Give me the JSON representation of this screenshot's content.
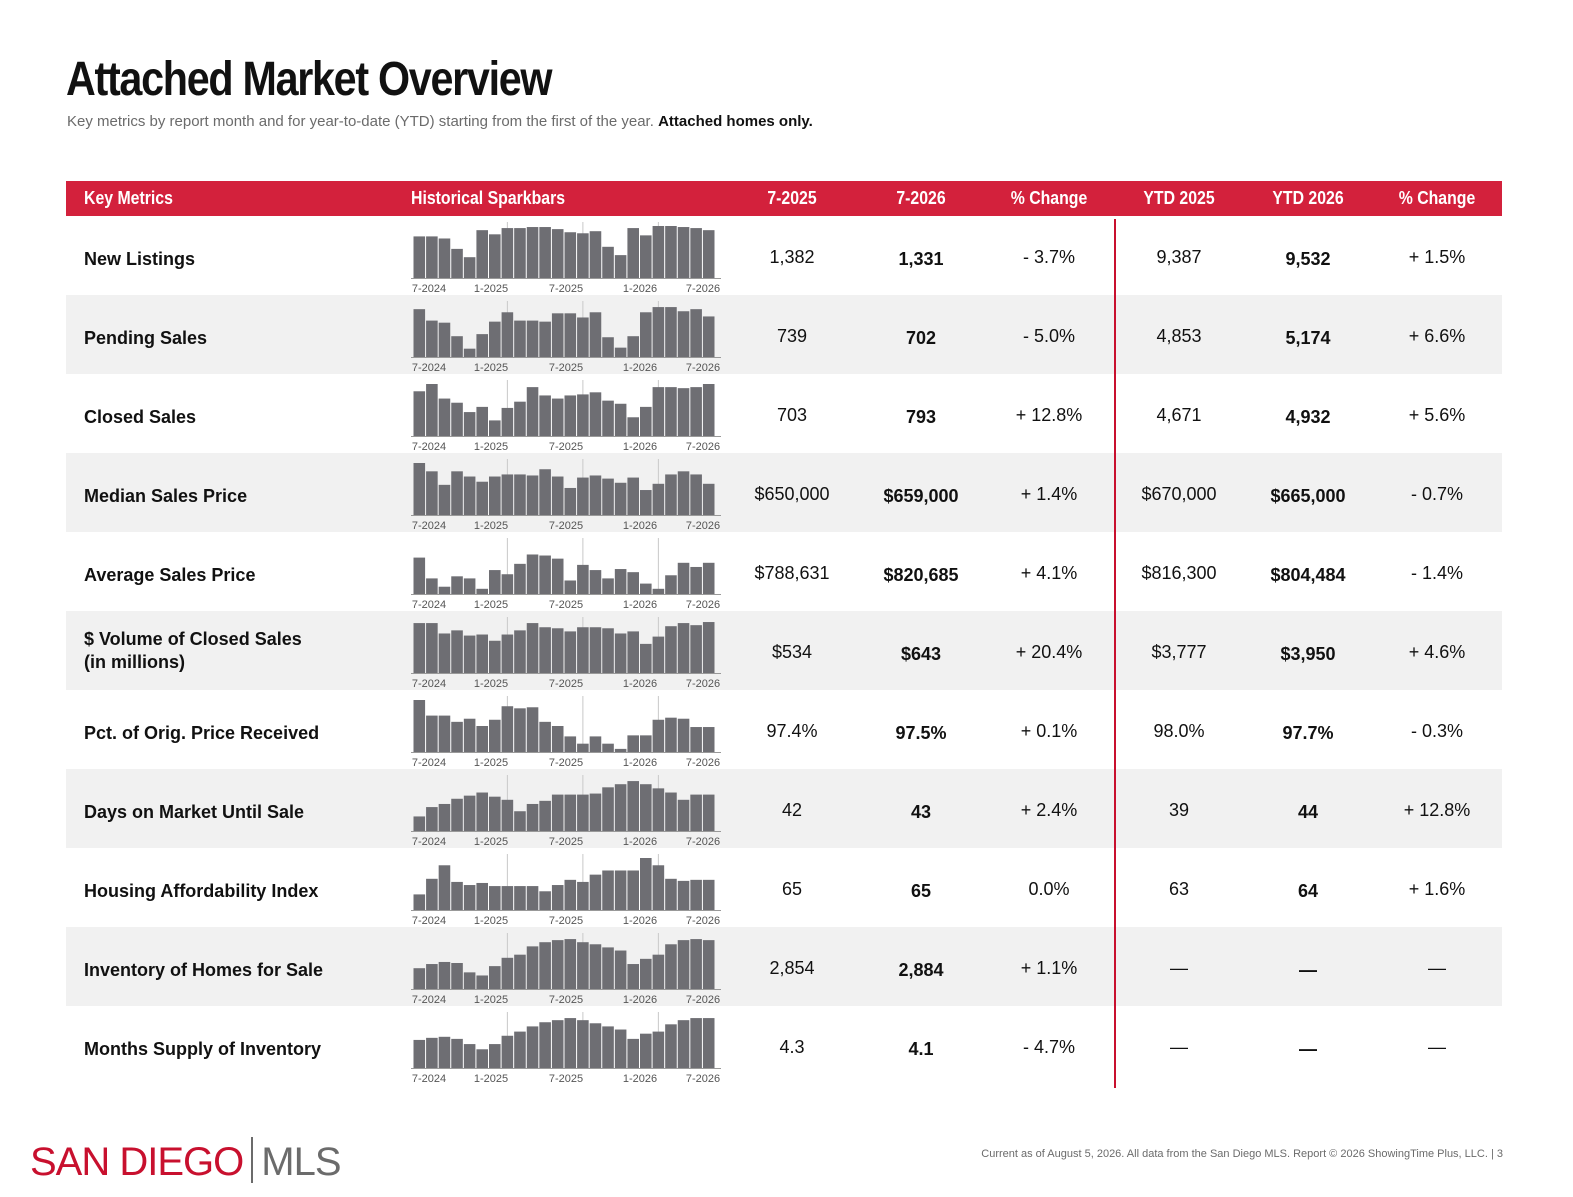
{
  "title": "Attached Market Overview",
  "subtitle": "Key metrics by report month and for year-to-date (YTD) starting from the first of the year.",
  "subtitle_bold": "Attached homes only.",
  "header": {
    "key_metrics": "Key Metrics",
    "sparkbars": "Historical Sparkbars",
    "col_2025": "7-2025",
    "col_2026": "7-2026",
    "pct_change": "% Change",
    "ytd_2025": "YTD 2025",
    "ytd_2026": "YTD 2026",
    "ytd_pct_change": "% Change"
  },
  "spark_axis_labels": [
    "7-2024",
    "1-2025",
    "7-2025",
    "1-2026",
    "7-2026"
  ],
  "colors": {
    "accent": "#d3213c",
    "bar": "#6e6e73",
    "alt_row": "#f1f1f1"
  },
  "rows": [
    {
      "label": "New Listings",
      "v2025": "1,382",
      "v2026": "1,331",
      "pct": "- 3.7%",
      "ytd2025": "9,387",
      "ytd2026": "9,532",
      "ytdpct": "+ 1.5%",
      "bars": [
        0.8,
        0.8,
        0.76,
        0.56,
        0.4,
        0.92,
        0.84,
        0.96,
        0.96,
        0.98,
        0.98,
        0.94,
        0.88,
        0.86,
        0.9,
        0.6,
        0.44,
        0.96,
        0.82,
        1.0,
        1.0,
        0.98,
        0.96,
        0.92
      ]
    },
    {
      "label": "Pending Sales",
      "v2025": "739",
      "v2026": "702",
      "pct": "- 5.0%",
      "ytd2025": "4,853",
      "ytd2026": "5,174",
      "ytdpct": "+ 6.6%",
      "bars": [
        0.92,
        0.7,
        0.66,
        0.4,
        0.16,
        0.44,
        0.68,
        0.86,
        0.7,
        0.7,
        0.68,
        0.84,
        0.84,
        0.76,
        0.86,
        0.38,
        0.18,
        0.4,
        0.86,
        0.96,
        0.96,
        0.88,
        0.92,
        0.78
      ]
    },
    {
      "label": "Closed Sales",
      "v2025": "703",
      "v2026": "793",
      "pct": "+ 12.8%",
      "ytd2025": "4,671",
      "ytd2026": "4,932",
      "ytdpct": "+ 5.6%",
      "bars": [
        0.86,
        1.0,
        0.72,
        0.64,
        0.46,
        0.56,
        0.3,
        0.54,
        0.66,
        0.94,
        0.78,
        0.72,
        0.78,
        0.8,
        0.84,
        0.68,
        0.62,
        0.36,
        0.56,
        0.94,
        0.94,
        0.92,
        0.94,
        1.0
      ]
    },
    {
      "label": "Median Sales Price",
      "v2025": "$650,000",
      "v2026": "$659,000",
      "pct": "+ 1.4%",
      "ytd2025": "$670,000",
      "ytd2026": "$665,000",
      "ytdpct": "- 0.7%",
      "bars": [
        1.0,
        0.84,
        0.58,
        0.84,
        0.74,
        0.64,
        0.74,
        0.78,
        0.78,
        0.76,
        0.88,
        0.74,
        0.52,
        0.72,
        0.76,
        0.7,
        0.62,
        0.72,
        0.48,
        0.6,
        0.78,
        0.84,
        0.78,
        0.6
      ]
    },
    {
      "label": "Average Sales Price",
      "v2025": "$788,631",
      "v2026": "$820,685",
      "pct": "+ 4.1%",
      "ytd2025": "$816,300",
      "ytd2026": "$804,484",
      "ytdpct": "- 1.4%",
      "bars": [
        0.7,
        0.3,
        0.14,
        0.34,
        0.3,
        0.1,
        0.46,
        0.38,
        0.58,
        0.76,
        0.74,
        0.68,
        0.26,
        0.56,
        0.46,
        0.3,
        0.48,
        0.42,
        0.2,
        0.1,
        0.36,
        0.6,
        0.52,
        0.6
      ]
    },
    {
      "label": "$ Volume of Closed Sales",
      "label2": "(in millions)",
      "v2025": "$534",
      "v2026": "$643",
      "pct": "+ 20.4%",
      "ytd2025": "$3,777",
      "ytd2026": "$3,950",
      "ytdpct": "+ 4.6%",
      "bars": [
        0.96,
        0.96,
        0.76,
        0.82,
        0.72,
        0.74,
        0.62,
        0.74,
        0.82,
        0.96,
        0.88,
        0.86,
        0.8,
        0.88,
        0.88,
        0.86,
        0.76,
        0.8,
        0.56,
        0.7,
        0.9,
        0.96,
        0.92,
        0.98
      ]
    },
    {
      "label": "Pct. of Orig. Price Received",
      "v2025": "97.4%",
      "v2026": "97.5%",
      "pct": "+ 0.1%",
      "ytd2025": "98.0%",
      "ytd2026": "97.7%",
      "ytdpct": "- 0.3%",
      "bars": [
        1.0,
        0.7,
        0.7,
        0.58,
        0.64,
        0.5,
        0.62,
        0.88,
        0.84,
        0.86,
        0.58,
        0.5,
        0.3,
        0.16,
        0.3,
        0.16,
        0.06,
        0.32,
        0.32,
        0.62,
        0.66,
        0.64,
        0.48,
        0.48
      ]
    },
    {
      "label": "Days on Market Until Sale",
      "v2025": "42",
      "v2026": "43",
      "pct": "+ 2.4%",
      "ytd2025": "39",
      "ytd2026": "44",
      "ytdpct": "+ 12.8%",
      "bars": [
        0.28,
        0.46,
        0.52,
        0.62,
        0.68,
        0.74,
        0.66,
        0.6,
        0.38,
        0.52,
        0.58,
        0.7,
        0.7,
        0.7,
        0.72,
        0.84,
        0.9,
        0.96,
        0.9,
        0.82,
        0.74,
        0.6,
        0.7,
        0.7
      ]
    },
    {
      "label": "Housing Affordability Index",
      "v2025": "65",
      "v2026": "65",
      "pct": "0.0%",
      "ytd2025": "63",
      "ytd2026": "64",
      "ytdpct": "+ 1.6%",
      "bars": [
        0.3,
        0.6,
        0.86,
        0.54,
        0.48,
        0.52,
        0.46,
        0.46,
        0.46,
        0.46,
        0.36,
        0.48,
        0.58,
        0.54,
        0.68,
        0.76,
        0.76,
        0.76,
        1.0,
        0.86,
        0.6,
        0.56,
        0.58,
        0.58
      ]
    },
    {
      "label": "Inventory of Homes for Sale",
      "v2025": "2,854",
      "v2026": "2,884",
      "pct": "+ 1.1%",
      "ytd2025": "—",
      "ytd2026": "—",
      "ytdpct": "—",
      "bars": [
        0.4,
        0.48,
        0.52,
        0.5,
        0.32,
        0.26,
        0.44,
        0.6,
        0.66,
        0.82,
        0.9,
        0.94,
        0.96,
        0.9,
        0.86,
        0.8,
        0.74,
        0.48,
        0.58,
        0.66,
        0.86,
        0.94,
        0.96,
        0.94
      ]
    },
    {
      "label": "Months Supply of Inventory",
      "v2025": "4.3",
      "v2026": "4.1",
      "pct": "- 4.7%",
      "ytd2025": "—",
      "ytd2026": "—",
      "ytdpct": "—",
      "bars": [
        0.54,
        0.58,
        0.6,
        0.56,
        0.46,
        0.36,
        0.46,
        0.62,
        0.7,
        0.8,
        0.88,
        0.92,
        0.96,
        0.92,
        0.86,
        0.8,
        0.74,
        0.56,
        0.66,
        0.7,
        0.84,
        0.92,
        0.96,
        0.96
      ]
    }
  ],
  "logo": {
    "left": "SAN DIEGO",
    "right": "MLS"
  },
  "footer": "Current as of August 5, 2026. All data from the San Diego MLS. Report © 2026 ShowingTime Plus, LLC.  |  3"
}
